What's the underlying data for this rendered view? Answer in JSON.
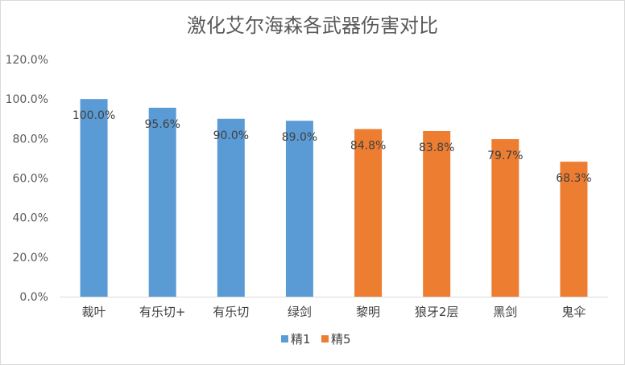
{
  "chart_data": {
    "type": "bar",
    "title": "激化艾尔海森各武器伤害对比",
    "categories": [
      "裁叶",
      "有乐切+",
      "有乐切",
      "绿剑",
      "黎明",
      "狼牙2层",
      "黑剑",
      "鬼伞"
    ],
    "values": [
      100.0,
      95.6,
      90.0,
      89.0,
      84.8,
      83.8,
      79.7,
      68.3
    ],
    "data_labels": [
      "100.0%",
      "95.6%",
      "90.0%",
      "89.0%",
      "84.8%",
      "83.8%",
      "79.7%",
      "68.3%"
    ],
    "series": [
      {
        "name": "精1",
        "color": "#5b9bd5",
        "indices": [
          0,
          1,
          2,
          3
        ]
      },
      {
        "name": "精5",
        "color": "#ed7d31",
        "indices": [
          4,
          5,
          6,
          7
        ]
      }
    ],
    "y_ticks": [
      "0.0%",
      "20.0%",
      "40.0%",
      "60.0%",
      "80.0%",
      "100.0%",
      "120.0%"
    ],
    "ylim": [
      0,
      120
    ],
    "grid": false,
    "legend_position": "bottom"
  }
}
